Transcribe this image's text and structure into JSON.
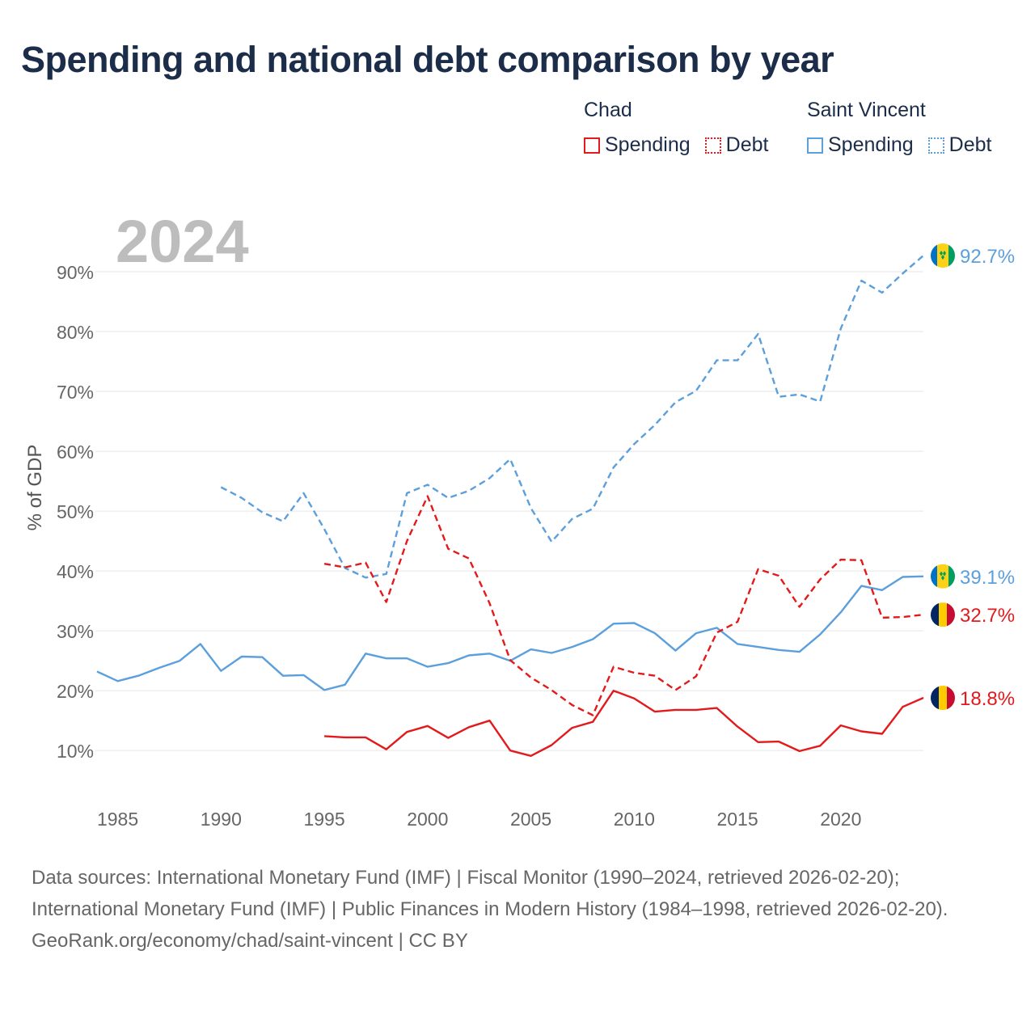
{
  "title": "Spending and national debt comparison by year",
  "legend": {
    "groups": [
      {
        "country": "Chad",
        "color": "#e31a1c",
        "items": [
          {
            "label": "Spending",
            "style": "solid"
          },
          {
            "label": "Debt",
            "style": "dotted"
          }
        ]
      },
      {
        "country": "Saint Vincent",
        "color": "#5b9fdc",
        "items": [
          {
            "label": "Spending",
            "style": "solid"
          },
          {
            "label": "Debt",
            "style": "dotted"
          }
        ]
      }
    ]
  },
  "chart_data": {
    "type": "line",
    "year_label": "2024",
    "ylabel": "% of GDP",
    "xlim": [
      1984,
      2024
    ],
    "ylim": [
      3,
      100
    ],
    "x_ticks": [
      1985,
      1990,
      1995,
      2000,
      2005,
      2010,
      2015,
      2020
    ],
    "y_ticks": [
      10,
      20,
      30,
      40,
      50,
      60,
      70,
      80,
      90
    ],
    "y_tick_labels": [
      "10%",
      "20%",
      "30%",
      "40%",
      "50%",
      "60%",
      "70%",
      "80%",
      "90%"
    ],
    "series": [
      {
        "name": "Saint Vincent Debt",
        "country": "Saint Vincent",
        "measure": "Debt",
        "color": "#5b9fdc",
        "dash": "dashed",
        "end_label": "92.7%",
        "flag": "saint-vincent",
        "x": [
          1990,
          1991,
          1992,
          1993,
          1994,
          1995,
          1996,
          1997,
          1998,
          1999,
          2000,
          2001,
          2002,
          2003,
          2004,
          2005,
          2006,
          2007,
          2008,
          2009,
          2010,
          2011,
          2012,
          2013,
          2014,
          2015,
          2016,
          2017,
          2018,
          2019,
          2020,
          2021,
          2022,
          2023,
          2024
        ],
        "values": [
          54.0,
          52.2,
          49.8,
          48.3,
          53.0,
          47.0,
          40.5,
          38.9,
          39.5,
          53.0,
          54.4,
          52.2,
          53.4,
          55.5,
          58.7,
          50.5,
          44.9,
          48.7,
          50.4,
          57.3,
          61.2,
          64.4,
          68.2,
          70.1,
          75.2,
          75.2,
          79.6,
          69.1,
          69.5,
          68.3,
          80.5,
          88.5,
          86.5,
          89.7,
          92.7
        ]
      },
      {
        "name": "Saint Vincent Spending",
        "country": "Saint Vincent",
        "measure": "Spending",
        "color": "#5b9fdc",
        "dash": "solid",
        "end_label": "39.1%",
        "flag": "saint-vincent",
        "x": [
          1984,
          1985,
          1986,
          1987,
          1988,
          1989,
          1990,
          1991,
          1992,
          1993,
          1994,
          1995,
          1996,
          1997,
          1998,
          1999,
          2000,
          2001,
          2002,
          2003,
          2004,
          2005,
          2006,
          2007,
          2008,
          2009,
          2010,
          2011,
          2012,
          2013,
          2014,
          2015,
          2016,
          2017,
          2018,
          2019,
          2020,
          2021,
          2022,
          2023,
          2024
        ],
        "values": [
          23.2,
          21.6,
          22.5,
          23.8,
          25.0,
          27.8,
          23.3,
          25.7,
          25.6,
          22.5,
          22.6,
          20.1,
          21.0,
          26.2,
          25.4,
          25.4,
          24.0,
          24.6,
          25.9,
          26.2,
          25.0,
          26.9,
          26.3,
          27.3,
          28.6,
          31.2,
          31.3,
          29.6,
          26.7,
          29.6,
          30.5,
          27.8,
          27.3,
          26.8,
          26.5,
          29.4,
          33.1,
          37.5,
          36.8,
          39.0,
          39.1
        ]
      },
      {
        "name": "Chad Debt",
        "country": "Chad",
        "measure": "Debt",
        "color": "#e31a1c",
        "dash": "dashed",
        "end_label": "32.7%",
        "flag": "chad",
        "x": [
          1995,
          1996,
          1997,
          1998,
          1999,
          2000,
          2001,
          2002,
          2003,
          2004,
          2005,
          2006,
          2007,
          2008,
          2009,
          2010,
          2011,
          2012,
          2013,
          2014,
          2015,
          2016,
          2017,
          2018,
          2019,
          2020,
          2021,
          2022,
          2023,
          2024
        ],
        "values": [
          41.2,
          40.6,
          41.4,
          34.8,
          45.0,
          52.5,
          43.7,
          42.1,
          34.6,
          25.1,
          22.2,
          20.1,
          17.6,
          15.9,
          24.0,
          23.0,
          22.5,
          20.1,
          22.4,
          29.7,
          31.5,
          40.3,
          39.2,
          34.0,
          38.6,
          41.9,
          41.8,
          32.2,
          32.3,
          32.7
        ]
      },
      {
        "name": "Chad Spending",
        "country": "Chad",
        "measure": "Spending",
        "color": "#e31a1c",
        "dash": "solid",
        "end_label": "18.8%",
        "flag": "chad",
        "x": [
          1995,
          1996,
          1997,
          1998,
          1999,
          2000,
          2001,
          2002,
          2003,
          2004,
          2005,
          2006,
          2007,
          2008,
          2009,
          2010,
          2011,
          2012,
          2013,
          2014,
          2015,
          2016,
          2017,
          2018,
          2019,
          2020,
          2021,
          2022,
          2023,
          2024
        ],
        "values": [
          12.4,
          12.2,
          12.2,
          10.2,
          13.1,
          14.1,
          12.1,
          13.9,
          15.0,
          10.0,
          9.1,
          10.9,
          13.8,
          14.8,
          20.0,
          18.7,
          16.5,
          16.8,
          16.8,
          17.1,
          14.0,
          11.4,
          11.5,
          9.9,
          10.8,
          14.2,
          13.2,
          12.8,
          17.3,
          18.8
        ]
      }
    ]
  },
  "footer": {
    "sources": "Data sources: International Monetary Fund (IMF) | Fiscal Monitor (1990–2024, retrieved 2026-02-20); International Monetary Fund (IMF) | Public Finances in Modern History (1984–1998, retrieved 2026-02-20).",
    "link": "GeoRank.org/economy/chad/saint-vincent | CC BY"
  }
}
